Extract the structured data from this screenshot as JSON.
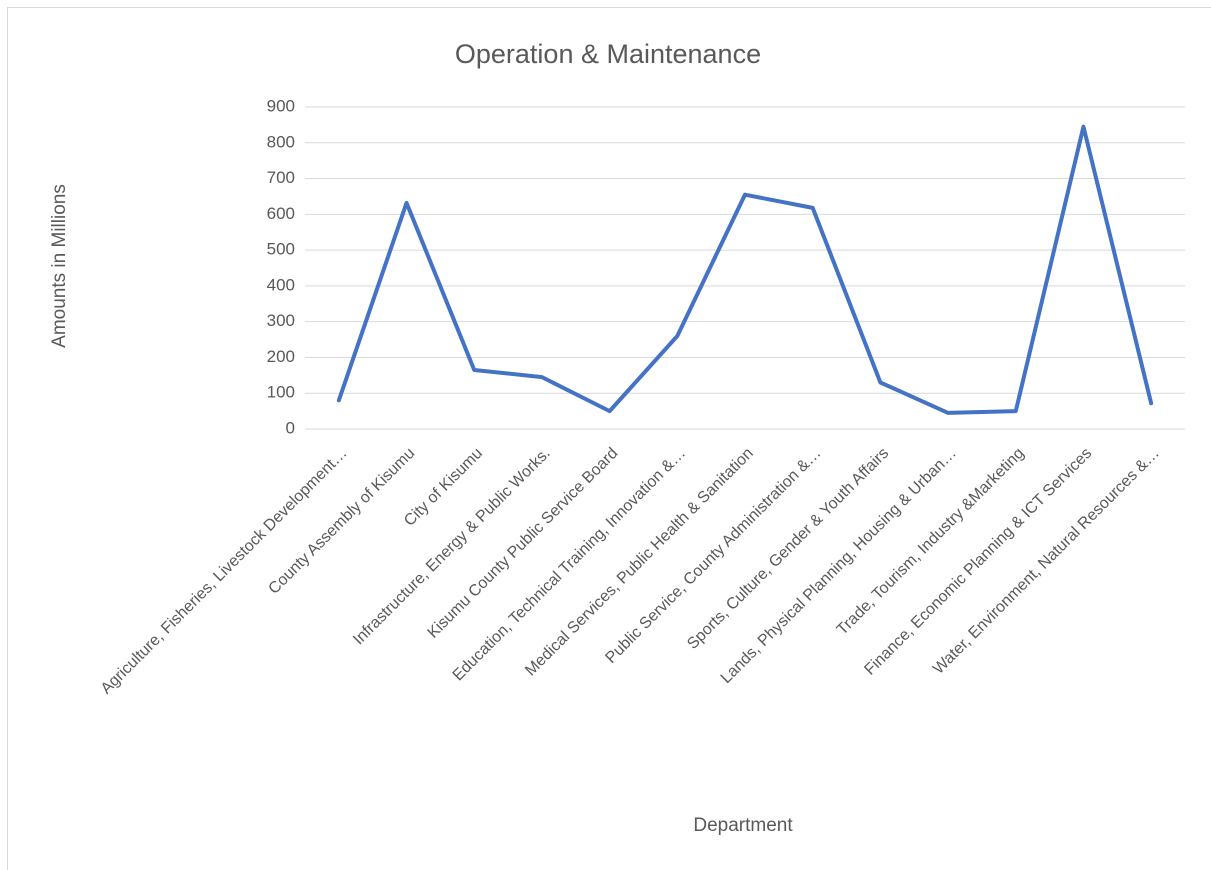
{
  "chart_data": {
    "type": "line",
    "title": "Operation & Maintenance",
    "x_label": "Department",
    "y_label": "Amounts in Millions",
    "categories": [
      "Agriculture, Fisheries, Livestock Development…",
      "County Assembly of Kisumu",
      "City of Kisumu",
      "Infrastructure, Energy & Public Works.",
      "Kisumu County Public Service Board",
      "Education, Technical Training, Innovation &…",
      "Medical Services, Public Health & Sanitation",
      "Public Service, County Administration &…",
      "Sports, Culture, Gender & Youth Affairs",
      "Lands, Physical Planning, Housing & Urban…",
      "Trade, Tourism, Industry &Marketing",
      "Finance, Economic Planning & ICT Services",
      "Water, Environment, Natural Resources &…"
    ],
    "series": [
      {
        "name": "Operation & Maintenance",
        "color": "#4472c4",
        "values": [
          80,
          632,
          165,
          145,
          50,
          260,
          655,
          618,
          130,
          45,
          50,
          845,
          72
        ]
      }
    ],
    "ylim": [
      0,
      900
    ],
    "yticks": [
      0,
      100,
      200,
      300,
      400,
      500,
      600,
      700,
      800,
      900
    ],
    "grid": true
  }
}
